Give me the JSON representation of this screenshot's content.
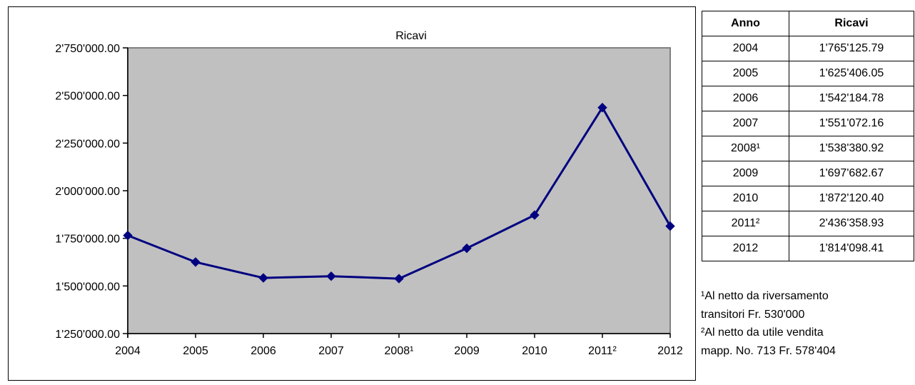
{
  "chart_data": {
    "type": "line",
    "title": "Ricavi",
    "xlabel": "",
    "ylabel": "",
    "categories": [
      "2004",
      "2005",
      "2006",
      "2007",
      "2008¹",
      "2009",
      "2010",
      "2011²",
      "2012"
    ],
    "series": [
      {
        "values": [
          1765125.79,
          1625406.05,
          1542184.78,
          1551072.16,
          1538380.92,
          1697682.67,
          1872120.4,
          2436358.93,
          1814098.41
        ]
      }
    ],
    "ylim": [
      1250000,
      2750000
    ],
    "yticks": [
      1250000,
      1500000,
      1750000,
      2000000,
      2250000,
      2500000,
      2750000
    ],
    "ytick_labels": [
      "1'250'000.00",
      "1'500'000.00",
      "1'750'000.00",
      "2'000'000.00",
      "2'250'000.00",
      "2'500'000.00",
      "2'750'000.00"
    ],
    "grid": false,
    "legend": "none",
    "colors": {
      "line": "#000080",
      "plot_bg": "#c0c0c0",
      "plot_border": "#808080"
    }
  },
  "table": {
    "headers": [
      "Anno",
      "Ricavi"
    ],
    "rows": [
      [
        "2004",
        "1'765'125.79"
      ],
      [
        "2005",
        "1'625'406.05"
      ],
      [
        "2006",
        "1'542'184.78"
      ],
      [
        "2007",
        "1'551'072.16"
      ],
      [
        "2008¹",
        "1'538'380.92"
      ],
      [
        "2009",
        "1'697'682.67"
      ],
      [
        "2010",
        "1'872'120.40"
      ],
      [
        "2011²",
        "2'436'358.93"
      ],
      [
        "2012",
        "1'814'098.41"
      ]
    ]
  },
  "notes": {
    "note1_line1": "¹Al netto da riversamento",
    "note1_line2": "transitori Fr. 530'000",
    "note2_line1": "²Al netto da utile vendita",
    "note2_line2": "mapp. No. 713 Fr. 578'404"
  }
}
